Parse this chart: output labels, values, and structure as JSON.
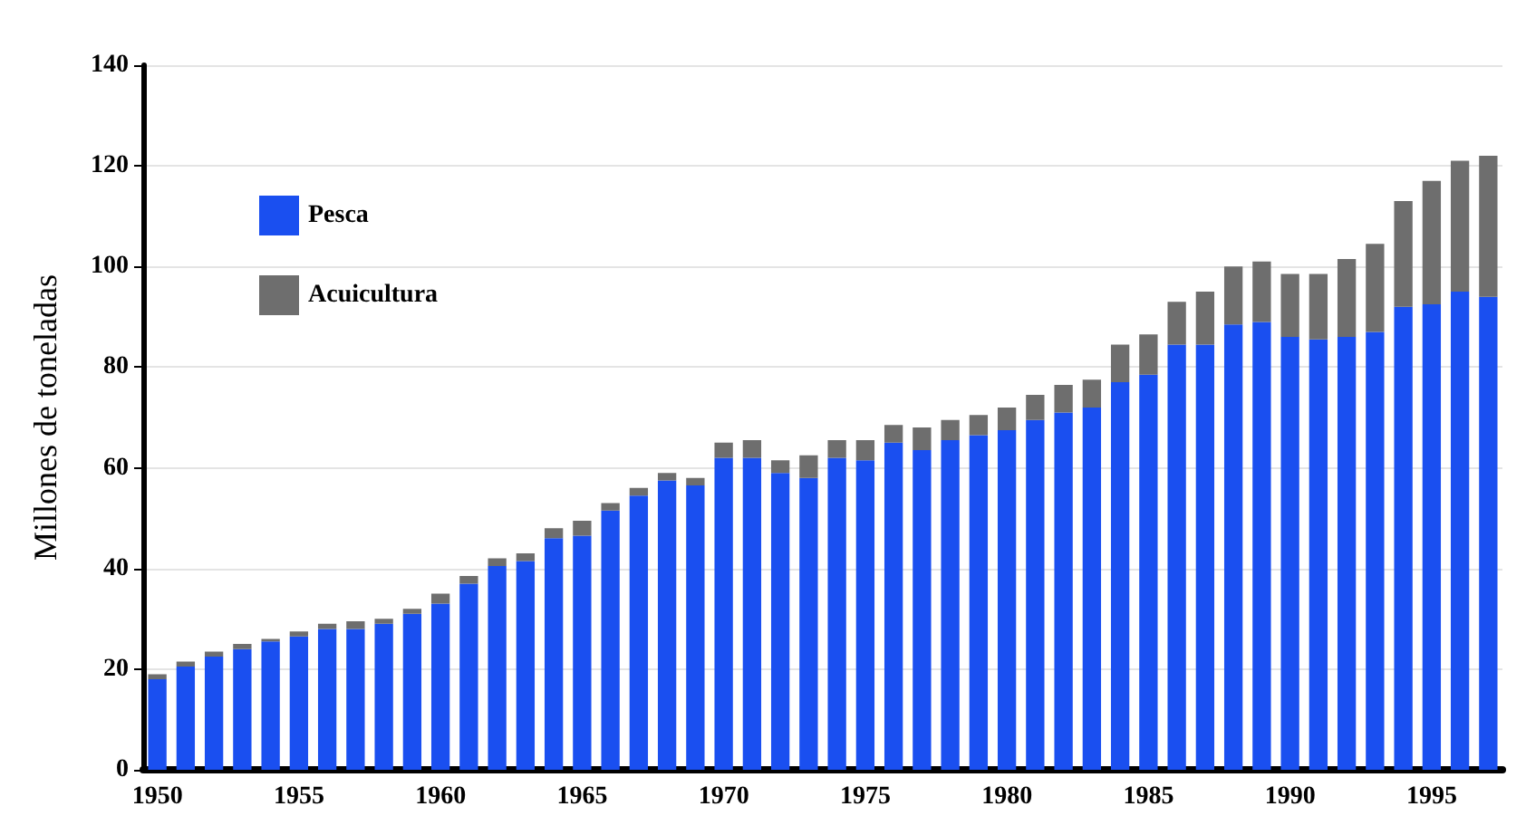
{
  "chart_data": {
    "type": "bar",
    "stacked": true,
    "ylabel": "Millones de toneladas",
    "categories": [
      "1950",
      null,
      null,
      null,
      null,
      "1955",
      null,
      null,
      null,
      null,
      "1960",
      null,
      null,
      null,
      null,
      "1965",
      null,
      null,
      null,
      null,
      "1970",
      null,
      null,
      null,
      null,
      "1975",
      null,
      null,
      null,
      null,
      "1980",
      null,
      null,
      null,
      null,
      "1985",
      null,
      null,
      null,
      null,
      "1990",
      null,
      null,
      null,
      null,
      "1995",
      null,
      null
    ],
    "series": [
      {
        "name": "Pesca",
        "color": "#1a4ff0",
        "values": [
          18,
          20.5,
          22.5,
          24,
          25.5,
          26.5,
          28,
          28,
          29,
          31,
          33,
          37,
          40.5,
          41.5,
          46,
          46.5,
          51.5,
          54.5,
          57.5,
          56.5,
          62,
          62,
          59,
          58,
          62,
          61.5,
          65,
          63.5,
          65.5,
          66.5,
          67.5,
          69.5,
          71,
          72,
          77,
          78.5,
          84.5,
          84.5,
          88.5,
          89,
          86,
          85.5,
          86,
          87,
          92,
          92.5,
          95,
          94
        ]
      },
      {
        "name": "Acuicultura",
        "color": "#6e6e6e",
        "values": [
          1,
          1,
          1,
          1,
          0.5,
          1,
          1,
          1.5,
          1,
          1,
          2,
          1.5,
          1.5,
          1.5,
          2,
          3,
          1.5,
          1.5,
          1.5,
          1.5,
          3,
          3.5,
          2.5,
          4.5,
          3.5,
          4,
          3.5,
          4.5,
          4,
          4,
          4.5,
          5,
          5.5,
          5.5,
          7.5,
          8,
          8.5,
          10.5,
          11.5,
          12,
          12.5,
          13,
          15.5,
          17.5,
          21,
          24.5,
          26,
          28
        ]
      }
    ],
    "ylim": [
      0,
      140
    ],
    "yticks": [
      0,
      20,
      40,
      60,
      80,
      100,
      120,
      140
    ],
    "grid": "y",
    "legend": "top left"
  }
}
